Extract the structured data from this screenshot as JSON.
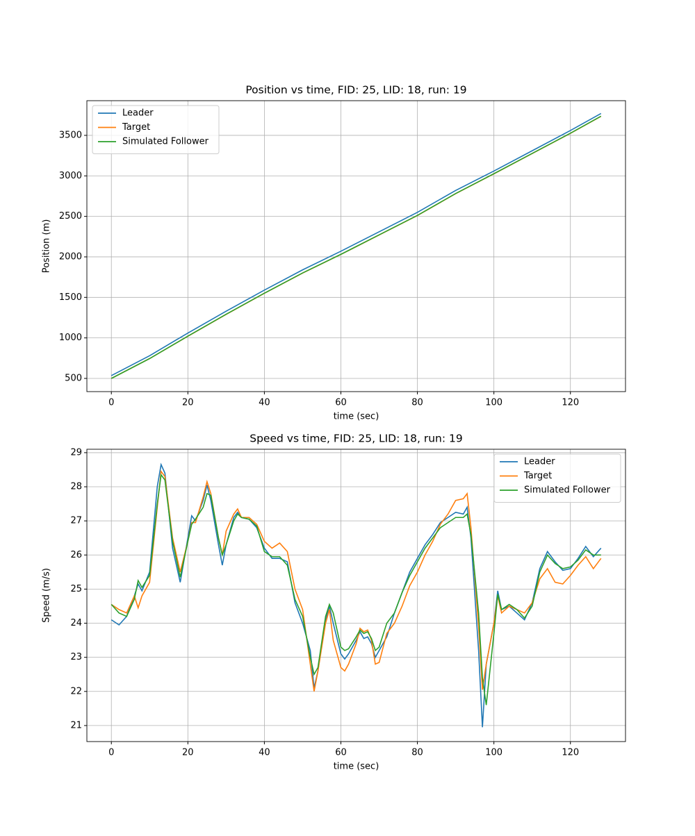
{
  "chart_data": [
    {
      "type": "line",
      "title": "Position vs time, FID: 25, LID: 18, run: 19",
      "xlabel": "time (sec)",
      "ylabel": "Position (m)",
      "x": [
        0,
        10,
        20,
        30,
        40,
        50,
        60,
        70,
        80,
        90,
        100,
        110,
        120,
        128
      ],
      "series": [
        {
          "name": "Leader",
          "color": "#1f77b4",
          "values": [
            535,
            780,
            1060,
            1330,
            1590,
            1840,
            2070,
            2310,
            2550,
            2820,
            3060,
            3310,
            3560,
            3770
          ]
        },
        {
          "name": "Target",
          "color": "#ff7f0e",
          "values": [
            500,
            745,
            1020,
            1290,
            1550,
            1800,
            2030,
            2270,
            2510,
            2780,
            3025,
            3275,
            3525,
            3735
          ]
        },
        {
          "name": "Simulated Follower",
          "color": "#2ca02c",
          "values": [
            500,
            745,
            1022,
            1292,
            1552,
            1802,
            2032,
            2272,
            2512,
            2782,
            3027,
            3277,
            3527,
            3737
          ]
        }
      ],
      "xlim": [
        -6.4,
        134.4
      ],
      "ylim": [
        337,
        3928
      ],
      "xticks": [
        0,
        20,
        40,
        60,
        80,
        100,
        120
      ],
      "yticks": [
        500,
        1000,
        1500,
        2000,
        2500,
        3000,
        3500
      ],
      "grid": true,
      "legend_loc": "upper left"
    },
    {
      "type": "line",
      "title": "Speed vs time, FID: 25, LID: 18, run: 19",
      "xlabel": "time (sec)",
      "ylabel": "Speed (m/s)",
      "x": [
        0,
        2,
        4,
        6,
        7,
        8,
        10,
        12,
        13,
        14,
        16,
        18,
        20,
        21,
        22,
        24,
        25,
        26,
        28,
        29,
        30,
        32,
        33,
        34,
        36,
        38,
        40,
        42,
        44,
        46,
        48,
        50,
        52,
        53,
        54,
        56,
        57,
        58,
        60,
        61,
        62,
        64,
        65,
        66,
        67,
        68,
        69,
        70,
        72,
        74,
        76,
        78,
        80,
        82,
        84,
        86,
        88,
        90,
        92,
        93,
        94,
        96,
        97,
        98,
        100,
        101,
        102,
        104,
        106,
        108,
        110,
        112,
        114,
        116,
        118,
        120,
        122,
        124,
        126,
        128
      ],
      "series": [
        {
          "name": "Leader",
          "color": "#1f77b4",
          "values": [
            24.1,
            23.95,
            24.2,
            24.8,
            25.15,
            24.95,
            25.5,
            28.0,
            28.65,
            28.4,
            26.2,
            25.2,
            26.5,
            27.15,
            27.0,
            27.6,
            28.05,
            27.6,
            26.3,
            25.7,
            26.3,
            27.1,
            27.25,
            27.1,
            27.05,
            26.8,
            26.2,
            25.9,
            25.9,
            25.8,
            24.6,
            24.0,
            23.2,
            22.1,
            22.6,
            24.1,
            24.5,
            24.0,
            23.1,
            22.95,
            23.1,
            23.5,
            23.75,
            23.55,
            23.6,
            23.4,
            23.0,
            23.2,
            23.6,
            24.3,
            24.9,
            25.5,
            25.9,
            26.3,
            26.6,
            26.95,
            27.1,
            27.25,
            27.2,
            27.4,
            26.5,
            23.2,
            20.95,
            22.8,
            24.0,
            24.95,
            24.4,
            24.5,
            24.3,
            24.1,
            24.6,
            25.6,
            26.1,
            25.8,
            25.55,
            25.6,
            25.9,
            26.25,
            25.95,
            26.2
          ]
        },
        {
          "name": "Target",
          "color": "#ff7f0e",
          "values": [
            24.55,
            24.4,
            24.3,
            24.8,
            24.45,
            24.8,
            25.2,
            27.4,
            28.45,
            28.3,
            26.5,
            25.5,
            26.4,
            26.95,
            26.95,
            27.7,
            28.15,
            27.8,
            26.5,
            26.0,
            26.7,
            27.2,
            27.35,
            27.1,
            27.1,
            26.9,
            26.4,
            26.2,
            26.35,
            26.1,
            25.0,
            24.4,
            22.8,
            22.0,
            22.6,
            24.0,
            24.4,
            23.5,
            22.7,
            22.6,
            22.8,
            23.4,
            23.85,
            23.75,
            23.8,
            23.5,
            22.8,
            22.85,
            23.7,
            24.0,
            24.5,
            25.1,
            25.5,
            26.0,
            26.4,
            26.9,
            27.2,
            27.6,
            27.65,
            27.8,
            26.8,
            23.9,
            22.05,
            22.8,
            24.0,
            24.8,
            24.3,
            24.5,
            24.4,
            24.3,
            24.6,
            25.3,
            25.6,
            25.2,
            25.15,
            25.4,
            25.7,
            25.95,
            25.6,
            25.9
          ]
        },
        {
          "name": "Simulated Follower",
          "color": "#2ca02c",
          "values": [
            24.55,
            24.3,
            24.2,
            24.7,
            25.25,
            25.05,
            25.4,
            27.5,
            28.35,
            28.2,
            26.4,
            25.35,
            26.4,
            26.9,
            27.05,
            27.4,
            27.8,
            27.75,
            26.5,
            26.0,
            26.3,
            27.0,
            27.2,
            27.1,
            27.05,
            26.85,
            26.1,
            25.95,
            25.95,
            25.7,
            24.7,
            24.2,
            23.0,
            22.5,
            22.7,
            24.2,
            24.55,
            24.3,
            23.3,
            23.2,
            23.25,
            23.6,
            23.8,
            23.7,
            23.75,
            23.55,
            23.2,
            23.3,
            24.0,
            24.3,
            24.9,
            25.4,
            25.8,
            26.2,
            26.5,
            26.8,
            26.95,
            27.1,
            27.1,
            27.2,
            26.6,
            24.3,
            22.4,
            21.6,
            23.7,
            24.85,
            24.4,
            24.55,
            24.4,
            24.15,
            24.5,
            25.5,
            26.0,
            25.75,
            25.6,
            25.65,
            25.85,
            26.15,
            26.0,
            26.0
          ]
        }
      ],
      "xlim": [
        -6.4,
        134.4
      ],
      "ylim": [
        20.53,
        29.1
      ],
      "xticks": [
        0,
        20,
        40,
        60,
        80,
        100,
        120
      ],
      "yticks": [
        21,
        22,
        23,
        24,
        25,
        26,
        27,
        28,
        29
      ],
      "grid": true,
      "legend_loc": "upper right"
    }
  ]
}
